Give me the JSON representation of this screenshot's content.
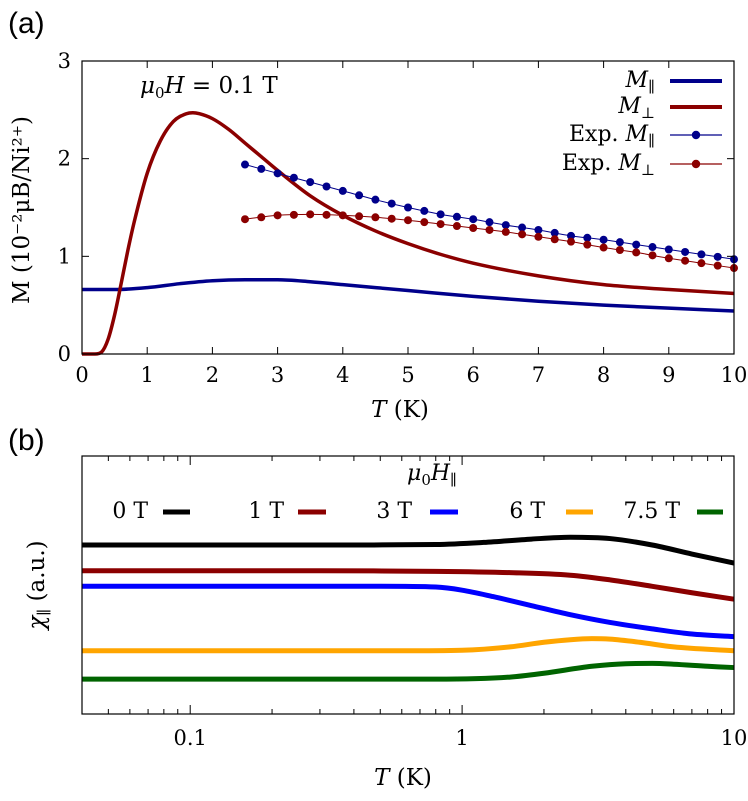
{
  "figure": {
    "panel_a_label": "(a)",
    "panel_b_label": "(b)"
  },
  "chart_data": [
    {
      "type": "line",
      "panel": "a",
      "annotation": {
        "mu0": "μ",
        "mu0_sub": "0",
        "H": "H",
        "rest": " = 0.1 T"
      },
      "xlabel": {
        "var": "T",
        "unit": "  (K)"
      },
      "ylabel": "M (10⁻²μB/Ni²⁺)",
      "xlim": [
        0,
        10
      ],
      "ylim": [
        0,
        3
      ],
      "xticks": [
        "0",
        "1",
        "2",
        "3",
        "4",
        "5",
        "6",
        "7",
        "8",
        "9",
        "10"
      ],
      "yticks": [
        "0",
        "1",
        "2",
        "3"
      ],
      "legend_position": "top-right",
      "series": [
        {
          "name": "M∥",
          "kind": "line",
          "color": "#00008b",
          "legend": {
            "main": "M",
            "sub": "∥"
          },
          "x": [
            0,
            0.5,
            1,
            1.5,
            2,
            2.5,
            3,
            3.5,
            4,
            5,
            6,
            7,
            8,
            9,
            10
          ],
          "y": [
            0.66,
            0.66,
            0.68,
            0.72,
            0.75,
            0.76,
            0.76,
            0.74,
            0.71,
            0.65,
            0.59,
            0.54,
            0.5,
            0.47,
            0.44
          ]
        },
        {
          "name": "M⊥",
          "kind": "line",
          "color": "#8b0000",
          "legend": {
            "main": "M",
            "sub": "⊥"
          },
          "x": [
            0,
            0.2,
            0.3,
            0.4,
            0.5,
            0.6,
            0.7,
            0.8,
            1.0,
            1.2,
            1.4,
            1.6,
            1.7,
            1.8,
            2.0,
            2.25,
            2.5,
            2.75,
            3.0,
            3.5,
            4.0,
            4.5,
            5.0,
            5.5,
            6.0,
            7.0,
            8.0,
            9.0,
            10.0
          ],
          "y": [
            0.0,
            0.0,
            0.02,
            0.15,
            0.4,
            0.72,
            1.05,
            1.35,
            1.85,
            2.18,
            2.38,
            2.46,
            2.47,
            2.46,
            2.41,
            2.3,
            2.16,
            2.02,
            1.88,
            1.62,
            1.42,
            1.26,
            1.13,
            1.02,
            0.93,
            0.8,
            0.71,
            0.66,
            0.62
          ]
        },
        {
          "name": "Exp. M∥",
          "kind": "points",
          "color": "#00008b",
          "legend": {
            "prefix": "Exp. ",
            "main": "M",
            "sub": "∥"
          },
          "x": [
            2.5,
            3,
            3.5,
            4,
            4.5,
            5,
            5.5,
            6,
            6.5,
            7,
            7.5,
            8,
            8.5,
            9,
            9.5,
            10
          ],
          "y": [
            1.94,
            1.85,
            1.76,
            1.67,
            1.58,
            1.5,
            1.43,
            1.38,
            1.32,
            1.27,
            1.21,
            1.17,
            1.12,
            1.07,
            1.02,
            0.97
          ]
        },
        {
          "name": "Exp. M⊥",
          "kind": "points",
          "color": "#8b0000",
          "legend": {
            "prefix": "Exp. ",
            "main": "M",
            "sub": "⊥"
          },
          "x": [
            2.5,
            3,
            3.5,
            4,
            4.5,
            5,
            5.5,
            6,
            6.5,
            7,
            7.5,
            8,
            8.5,
            9,
            9.5,
            10
          ],
          "y": [
            1.38,
            1.42,
            1.43,
            1.42,
            1.4,
            1.37,
            1.33,
            1.29,
            1.25,
            1.2,
            1.15,
            1.09,
            1.04,
            0.98,
            0.93,
            0.88
          ]
        }
      ]
    },
    {
      "type": "line",
      "panel": "b",
      "xscale": "log",
      "xlim": [
        0.04,
        10
      ],
      "ylim": [
        0,
        10
      ],
      "xticks": [
        "0.1",
        "1",
        "10"
      ],
      "xtick_values": [
        0.1,
        1,
        10
      ],
      "xlabel": {
        "var": "T",
        "unit": "  (K)"
      },
      "ylabel": {
        "main": "χ",
        "sub": "∥",
        "rest": "  (a.u.)"
      },
      "legend_title": {
        "main": "μ",
        "sub": "0",
        "H": "H",
        "sub2": "∥"
      },
      "legend_position": "top",
      "series": [
        {
          "name": "0 T",
          "color": "#000000",
          "x": [
            0.04,
            0.3,
            0.8,
            1.2,
            1.8,
            2.5,
            3.5,
            5,
            7,
            10
          ],
          "y": [
            6.55,
            6.55,
            6.57,
            6.65,
            6.78,
            6.85,
            6.8,
            6.55,
            6.2,
            5.85
          ]
        },
        {
          "name": "1 T",
          "color": "#8b0000",
          "x": [
            0.04,
            0.3,
            0.8,
            1.5,
            2.5,
            3.5,
            5,
            7,
            10
          ],
          "y": [
            5.55,
            5.55,
            5.53,
            5.48,
            5.38,
            5.2,
            4.95,
            4.7,
            4.45
          ]
        },
        {
          "name": "3 T",
          "color": "#0000ff",
          "x": [
            0.04,
            0.5,
            0.8,
            1.0,
            1.3,
            1.8,
            2.5,
            3.5,
            5,
            7,
            10
          ],
          "y": [
            4.95,
            4.95,
            4.92,
            4.8,
            4.55,
            4.2,
            3.85,
            3.55,
            3.3,
            3.1,
            3.0
          ]
        },
        {
          "name": "6 T",
          "color": "#ffa500",
          "x": [
            0.04,
            0.6,
            1.0,
            1.5,
            2.0,
            2.5,
            3.0,
            3.5,
            4.5,
            6,
            10
          ],
          "y": [
            2.45,
            2.45,
            2.47,
            2.6,
            2.78,
            2.88,
            2.92,
            2.9,
            2.78,
            2.6,
            2.45
          ]
        },
        {
          "name": "7.5 T",
          "color": "#006400",
          "x": [
            0.04,
            0.8,
            1.5,
            2.0,
            3.0,
            4.0,
            5.0,
            6.0,
            8.0,
            10
          ],
          "y": [
            1.35,
            1.35,
            1.43,
            1.58,
            1.85,
            1.95,
            1.96,
            1.93,
            1.85,
            1.8
          ]
        }
      ]
    }
  ]
}
